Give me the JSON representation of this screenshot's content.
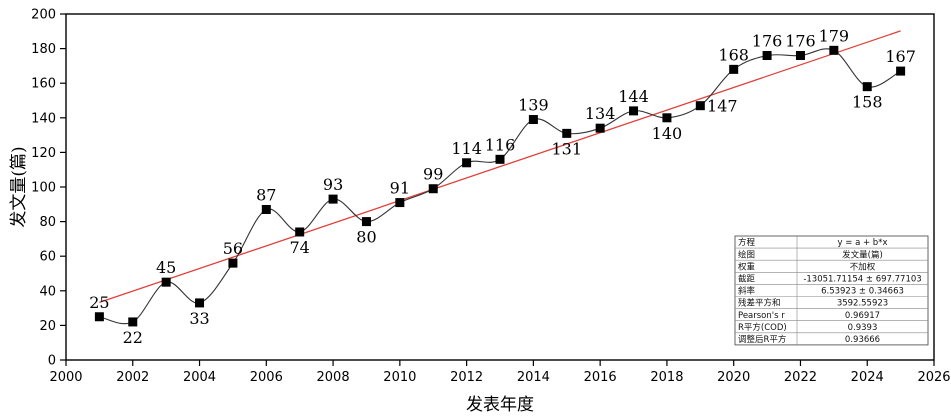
{
  "chart_data": {
    "type": "line",
    "title": "",
    "xlabel": "发表年度",
    "ylabel": "发文量(篇)",
    "xlim": [
      2000,
      2026
    ],
    "ylim": [
      0,
      200
    ],
    "x_ticks": [
      2000,
      2002,
      2004,
      2006,
      2008,
      2010,
      2012,
      2014,
      2016,
      2018,
      2020,
      2022,
      2024,
      2026
    ],
    "y_ticks": [
      0,
      20,
      40,
      60,
      80,
      100,
      120,
      140,
      160,
      180,
      200
    ],
    "grid": false,
    "series": [
      {
        "x": [
          2001,
          2002,
          2003,
          2004,
          2005,
          2006,
          2007,
          2008,
          2009,
          2010,
          2011,
          2012,
          2013,
          2014,
          2015,
          2016,
          2017,
          2018,
          2019,
          2020,
          2021,
          2022,
          2023,
          2024,
          2025
        ],
        "values": [
          25,
          22,
          45,
          33,
          56,
          87,
          74,
          93,
          80,
          91,
          99,
          114,
          116,
          139,
          131,
          134,
          144,
          140,
          147,
          168,
          176,
          176,
          179,
          158,
          167
        ],
        "data_labels": [
          "25",
          "22",
          "45",
          "33",
          "56",
          "87",
          "74",
          "93",
          "80",
          "91",
          "99",
          "114",
          "116",
          "139",
          "131",
          "134",
          "144",
          "140",
          "",
          "168",
          "176",
          "176",
          "179",
          "158",
          "167"
        ],
        "color": "#000000"
      }
    ],
    "fit_line": {
      "intercept": -13051.71154,
      "slope": 6.53923,
      "x_range": [
        2001,
        2025
      ],
      "color": "#e0403a"
    },
    "annotations": [
      {
        "text": "147",
        "x": 2019,
        "y": 147
      }
    ],
    "stats_table": [
      [
        "方程",
        "y = a + b*x"
      ],
      [
        "绘图",
        "发文量(篇)"
      ],
      [
        "权重",
        "不加权"
      ],
      [
        "截距",
        "-13051.71154 ± 697.77103"
      ],
      [
        "斜率",
        "6.53923 ± 0.34663"
      ],
      [
        "残差平方和",
        "3592.55923"
      ],
      [
        "Pearson's r",
        "0.96917"
      ],
      [
        "R平方(COD)",
        "0.9393"
      ],
      [
        "调整后R平方",
        "0.93666"
      ]
    ],
    "stats_table_placement": "bottom-right"
  }
}
